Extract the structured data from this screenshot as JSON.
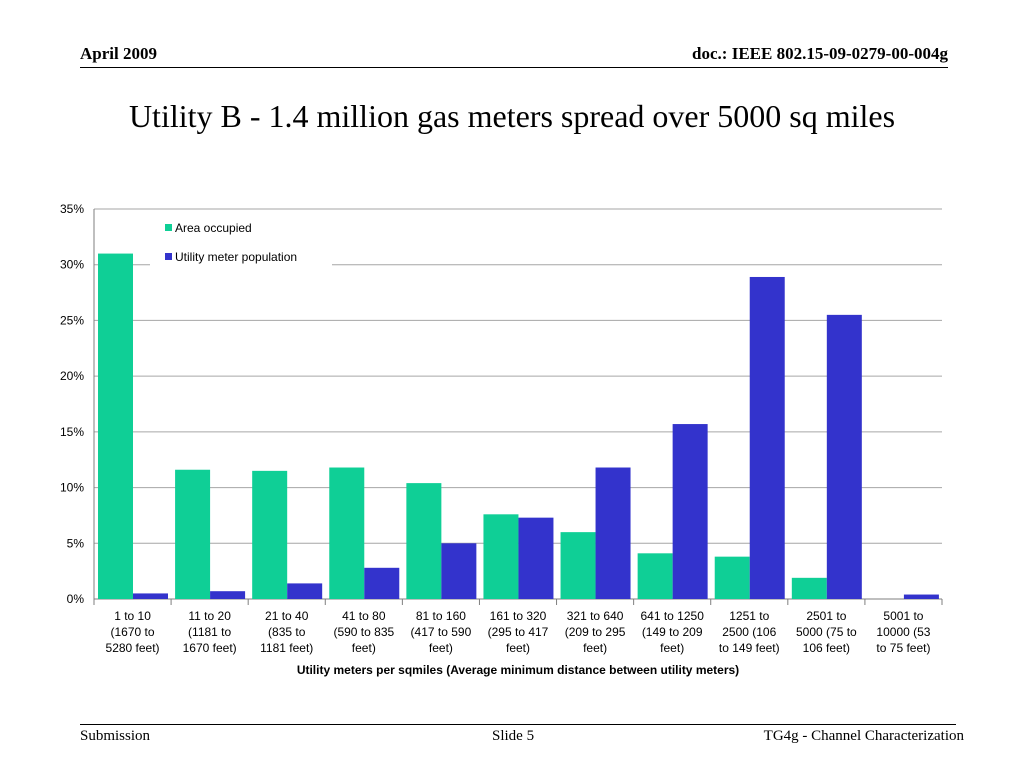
{
  "header": {
    "date": "April 2009",
    "doc_id": "doc.: IEEE 802.15-09-0279-00-004g"
  },
  "slide_title": "Utility B - 1.4 million gas meters spread over 5000 sq miles",
  "footer": {
    "left": "Submission",
    "center": "Slide 5",
    "right": "TG4g - Channel Characterization"
  },
  "colors": {
    "area_occupied": "#0fcf96",
    "utility_meter_population": "#3333cc",
    "gridline": "#a6a6a6",
    "axis_text": "#000000"
  },
  "chart_data": {
    "type": "bar",
    "title": "",
    "xlabel": "Utility meters per sqmiles (Average minimum distance between utility meters)",
    "ylabel": "",
    "ylim": [
      0,
      35
    ],
    "y_ticks": [
      "0%",
      "5%",
      "10%",
      "15%",
      "20%",
      "25%",
      "30%",
      "35%"
    ],
    "y_tick_values": [
      0,
      5,
      10,
      15,
      20,
      25,
      30,
      35
    ],
    "grid": true,
    "legend_position": "top-left",
    "categories": [
      [
        "1 to 10",
        "(1670 to",
        "5280 feet)"
      ],
      [
        "11 to 20",
        "(1181 to",
        "1670 feet)"
      ],
      [
        "21 to 40",
        "(835 to",
        "1181 feet)"
      ],
      [
        "41 to 80",
        "(590 to 835",
        "feet)"
      ],
      [
        "81 to 160",
        "(417 to 590",
        "feet)"
      ],
      [
        "161 to 320",
        "(295 to 417",
        "feet)"
      ],
      [
        "321 to 640",
        "(209 to 295",
        "feet)"
      ],
      [
        "641 to 1250",
        "(149 to 209",
        "feet)"
      ],
      [
        "1251 to",
        "2500 (106",
        "to 149 feet)"
      ],
      [
        "2501 to",
        "5000 (75 to",
        "106 feet)"
      ],
      [
        "5001 to",
        "10000 (53",
        "to 75 feet)"
      ]
    ],
    "series": [
      {
        "name": "Area occupied",
        "values": [
          31.0,
          11.6,
          11.5,
          11.8,
          10.4,
          7.6,
          6.0,
          4.1,
          3.8,
          1.9,
          0.0
        ]
      },
      {
        "name": "Utility meter population",
        "values": [
          0.5,
          0.7,
          1.4,
          2.8,
          5.0,
          7.3,
          11.8,
          15.7,
          28.9,
          25.5,
          0.4
        ]
      }
    ]
  }
}
